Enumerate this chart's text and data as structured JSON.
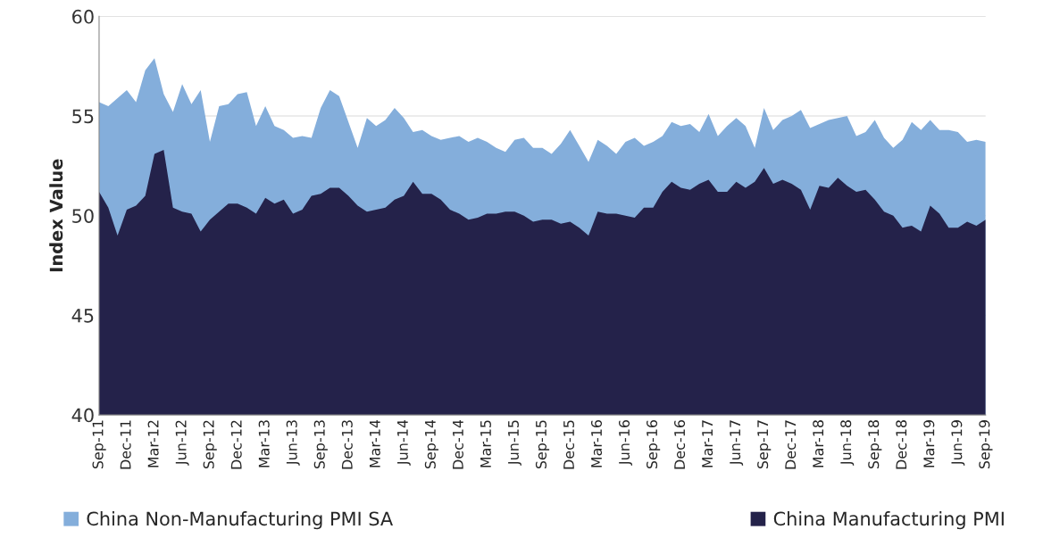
{
  "chart_data": {
    "type": "area",
    "ylabel": "Index Value",
    "categories": [
      "Sep-11",
      null,
      null,
      "Dec-11",
      null,
      null,
      "Mar-12",
      null,
      null,
      "Jun-12",
      null,
      null,
      "Sep-12",
      null,
      null,
      "Dec-12",
      null,
      null,
      "Mar-13",
      null,
      null,
      "Jun-13",
      null,
      null,
      "Sep-13",
      null,
      null,
      "Dec-13",
      null,
      null,
      "Mar-14",
      null,
      null,
      "Jun-14",
      null,
      null,
      "Sep-14",
      null,
      null,
      "Dec-14",
      null,
      null,
      "Mar-15",
      null,
      null,
      "Jun-15",
      null,
      null,
      "Sep-15",
      null,
      null,
      "Dec-15",
      null,
      null,
      "Mar-16",
      null,
      null,
      "Jun-16",
      null,
      null,
      "Sep-16",
      null,
      null,
      "Dec-16",
      null,
      null,
      "Mar-17",
      null,
      null,
      "Jun-17",
      null,
      null,
      "Sep-17",
      null,
      null,
      "Dec-17",
      null,
      null,
      "Mar-18",
      null,
      null,
      "Jun-18",
      null,
      null,
      "Sep-18",
      null,
      null,
      "Dec-18",
      null,
      null,
      "Mar-19",
      null,
      null,
      "Jun-19",
      null,
      null,
      "Sep-19"
    ],
    "series": [
      {
        "name": "China Non-Manufacturing PMI SA",
        "color": "#84aedb",
        "values": [
          55.7,
          55.5,
          55.9,
          56.3,
          55.7,
          57.3,
          57.9,
          56.1,
          55.2,
          56.6,
          55.6,
          56.3,
          53.7,
          55.5,
          55.6,
          56.1,
          56.2,
          54.5,
          55.5,
          54.5,
          54.3,
          53.9,
          54.0,
          53.9,
          55.4,
          56.3,
          56.0,
          54.7,
          53.4,
          54.9,
          54.5,
          54.8,
          55.4,
          54.9,
          54.2,
          54.3,
          54.0,
          53.8,
          53.9,
          54.0,
          53.7,
          53.9,
          53.7,
          53.4,
          53.2,
          53.8,
          53.9,
          53.4,
          53.4,
          53.1,
          53.6,
          54.3,
          53.5,
          52.7,
          53.8,
          53.5,
          53.1,
          53.7,
          53.9,
          53.5,
          53.7,
          54.0,
          54.7,
          54.5,
          54.6,
          54.2,
          55.1,
          54.0,
          54.5,
          54.9,
          54.5,
          53.4,
          55.4,
          54.3,
          54.8,
          55.0,
          55.3,
          54.4,
          54.6,
          54.8,
          54.9,
          55.0,
          54.0,
          54.2,
          54.8,
          53.9,
          53.4,
          53.8,
          54.7,
          54.3,
          54.8,
          54.3,
          54.3,
          54.2,
          53.7,
          53.8,
          53.7
        ]
      },
      {
        "name": "China Manufacturing PMI",
        "color": "#24224a",
        "values": [
          51.2,
          50.4,
          49.0,
          50.3,
          50.5,
          51.0,
          53.1,
          53.3,
          50.4,
          50.2,
          50.1,
          49.2,
          49.8,
          50.2,
          50.6,
          50.6,
          50.4,
          50.1,
          50.9,
          50.6,
          50.8,
          50.1,
          50.3,
          51.0,
          51.1,
          51.4,
          51.4,
          51.0,
          50.5,
          50.2,
          50.3,
          50.4,
          50.8,
          51.0,
          51.7,
          51.1,
          51.1,
          50.8,
          50.3,
          50.1,
          49.8,
          49.9,
          50.1,
          50.1,
          50.2,
          50.2,
          50.0,
          49.7,
          49.8,
          49.8,
          49.6,
          49.7,
          49.4,
          49.0,
          50.2,
          50.1,
          50.1,
          50.0,
          49.9,
          50.4,
          50.4,
          51.2,
          51.7,
          51.4,
          51.3,
          51.6,
          51.8,
          51.2,
          51.2,
          51.7,
          51.4,
          51.7,
          52.4,
          51.6,
          51.8,
          51.6,
          51.3,
          50.3,
          51.5,
          51.4,
          51.9,
          51.5,
          51.2,
          51.3,
          50.8,
          50.2,
          50.0,
          49.4,
          49.5,
          49.2,
          50.5,
          50.1,
          49.4,
          49.4,
          49.7,
          49.5,
          49.8
        ]
      }
    ],
    "ylim": [
      40,
      60
    ],
    "yticks": [
      40,
      45,
      50,
      55,
      60
    ],
    "grid": "y",
    "legend": "bottom"
  }
}
